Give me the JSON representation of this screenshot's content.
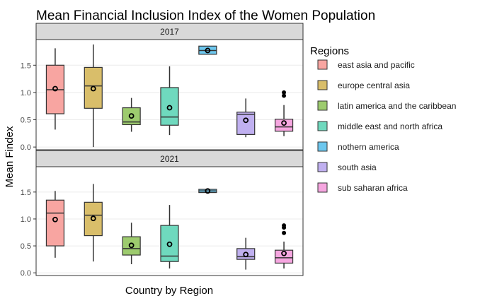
{
  "chart_data": {
    "type": "boxplot",
    "title": "Mean Financial Inclusion Index of the Women Population",
    "xlabel": "Country by Region",
    "ylabel": "Mean Findex",
    "legend_title": "Regions",
    "legend_position": "right",
    "grid": true,
    "y_ticks": [
      "0.0",
      "0.5",
      "1.0",
      "1.5"
    ],
    "y_tick_values": [
      0,
      0.5,
      1.0,
      1.5
    ],
    "ylim": [
      -0.05,
      1.97
    ],
    "colors": [
      "#F8A5A1",
      "#D9BE6A",
      "#9DCB6E",
      "#6FD9BE",
      "#6DC7EE",
      "#C0B0F0",
      "#F6A6E0"
    ],
    "regions": [
      "east asia and pacific",
      "europe central asia",
      "latin america and the caribbean",
      "middle east and north africa",
      "nothern america",
      "south asia",
      "sub saharan africa"
    ],
    "panels": [
      {
        "label": "2017",
        "boxes": [
          {
            "min": 0.32,
            "q1": 0.61,
            "median": 1.05,
            "q3": 1.5,
            "max": 1.81,
            "mean": 1.07,
            "outliers": []
          },
          {
            "min": 0.0,
            "q1": 0.71,
            "median": 1.12,
            "q3": 1.46,
            "max": 1.88,
            "mean": 1.07,
            "outliers": []
          },
          {
            "min": 0.28,
            "q1": 0.41,
            "median": 0.46,
            "q3": 0.72,
            "max": 0.9,
            "mean": 0.57,
            "outliers": []
          },
          {
            "min": 0.22,
            "q1": 0.4,
            "median": 0.55,
            "q3": 1.09,
            "max": 1.48,
            "mean": 0.72,
            "outliers": []
          },
          {
            "min": 1.7,
            "q1": 1.7,
            "median": 1.77,
            "q3": 1.85,
            "max": 1.85,
            "mean": 1.77,
            "outliers": []
          },
          {
            "min": 0.18,
            "q1": 0.23,
            "median": 0.6,
            "q3": 0.64,
            "max": 0.89,
            "mean": 0.49,
            "outliers": []
          },
          {
            "min": 0.2,
            "q1": 0.29,
            "median": 0.37,
            "q3": 0.51,
            "max": 0.77,
            "mean": 0.44,
            "outliers": [
              0.94,
              1.0
            ]
          }
        ]
      },
      {
        "label": "2021",
        "boxes": [
          {
            "min": 0.28,
            "q1": 0.5,
            "median": 1.11,
            "q3": 1.35,
            "max": 1.52,
            "mean": 0.99,
            "outliers": []
          },
          {
            "min": 0.21,
            "q1": 0.69,
            "median": 1.07,
            "q3": 1.31,
            "max": 1.65,
            "mean": 1.01,
            "outliers": []
          },
          {
            "min": 0.16,
            "q1": 0.33,
            "median": 0.45,
            "q3": 0.67,
            "max": 0.93,
            "mean": 0.51,
            "outliers": []
          },
          {
            "min": 0.08,
            "q1": 0.21,
            "median": 0.31,
            "q3": 0.88,
            "max": 1.26,
            "mean": 0.53,
            "outliers": []
          },
          {
            "min": 1.49,
            "q1": 1.49,
            "median": 1.52,
            "q3": 1.55,
            "max": 1.55,
            "mean": 1.52,
            "outliers": []
          },
          {
            "min": 0.06,
            "q1": 0.25,
            "median": 0.3,
            "q3": 0.45,
            "max": 0.65,
            "mean": 0.34,
            "outliers": []
          },
          {
            "min": 0.08,
            "q1": 0.18,
            "median": 0.28,
            "q3": 0.42,
            "max": 0.58,
            "mean": 0.36,
            "outliers": [
              0.74,
              0.84,
              0.88
            ]
          }
        ]
      }
    ]
  }
}
